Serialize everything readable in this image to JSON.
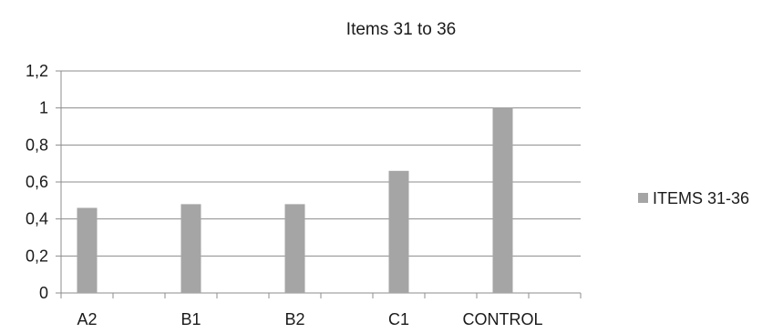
{
  "chart_data": {
    "type": "bar",
    "title": "Items 31 to 36",
    "categories": [
      "A2",
      "B1",
      "B2",
      "C1",
      "CONTROL"
    ],
    "series": [
      {
        "name": "ITEMS 31-36",
        "values": [
          0.46,
          0.48,
          0.48,
          0.66,
          1.0
        ]
      }
    ],
    "y_ticks": [
      "0",
      "0,2",
      "0,4",
      "0,6",
      "0,8",
      "1",
      "1,2"
    ],
    "ylim": [
      0,
      1.2
    ],
    "grid": true,
    "legend_position": "right",
    "colors": {
      "bar": "#a5a5a5",
      "grid": "#8c8c8c"
    }
  }
}
